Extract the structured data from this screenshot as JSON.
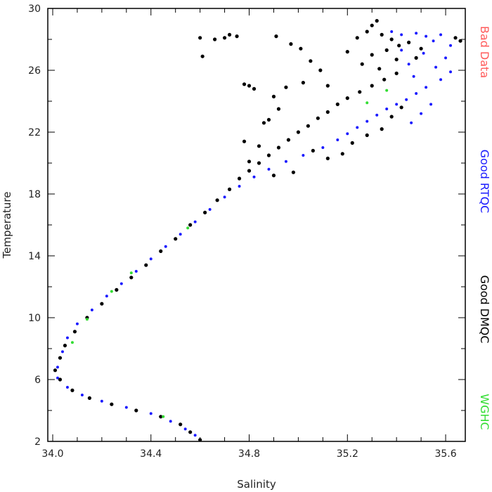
{
  "chart_data": {
    "type": "scatter",
    "xlabel": "Salinity",
    "ylabel": "Temperature",
    "xlim": [
      33.98,
      35.68
    ],
    "ylim": [
      2,
      30
    ],
    "x_ticks": [
      34.0,
      34.4,
      34.8,
      35.2,
      35.6
    ],
    "x_tick_labels": [
      "34.0",
      "34.4",
      "34.8",
      "35.2",
      "35.6"
    ],
    "y_ticks": [
      2,
      6,
      10,
      14,
      18,
      22,
      26,
      30
    ],
    "y_tick_labels": [
      "2",
      "6",
      "10",
      "14",
      "18",
      "22",
      "26",
      "30"
    ],
    "grid": false,
    "legend": {
      "placement": "right-vertical"
    },
    "series": [
      {
        "name": "Bad Data",
        "color": "#ff5a5a",
        "points": []
      },
      {
        "name": "Good RTQC",
        "color": "#1a1aff",
        "points": [
          [
            35.38,
            28.5
          ],
          [
            35.42,
            28.3
          ],
          [
            35.48,
            28.4
          ],
          [
            35.52,
            28.2
          ],
          [
            35.55,
            27.9
          ],
          [
            35.58,
            28.3
          ],
          [
            35.62,
            27.6
          ],
          [
            35.6,
            26.8
          ],
          [
            35.56,
            26.2
          ],
          [
            35.62,
            25.9
          ],
          [
            35.58,
            25.4
          ],
          [
            35.52,
            24.9
          ],
          [
            35.48,
            24.5
          ],
          [
            35.44,
            24.1
          ],
          [
            35.4,
            23.8
          ],
          [
            35.36,
            23.5
          ],
          [
            35.32,
            23.1
          ],
          [
            35.28,
            22.7
          ],
          [
            35.24,
            22.3
          ],
          [
            35.2,
            21.9
          ],
          [
            35.16,
            21.5
          ],
          [
            35.1,
            21.0
          ],
          [
            35.02,
            20.5
          ],
          [
            34.95,
            20.1
          ],
          [
            34.88,
            19.6
          ],
          [
            34.82,
            19.1
          ],
          [
            34.76,
            18.5
          ],
          [
            34.7,
            17.8
          ],
          [
            34.64,
            17.0
          ],
          [
            34.58,
            16.2
          ],
          [
            34.52,
            15.4
          ],
          [
            34.46,
            14.6
          ],
          [
            34.4,
            13.8
          ],
          [
            34.34,
            13.0
          ],
          [
            34.28,
            12.2
          ],
          [
            34.22,
            11.4
          ],
          [
            34.16,
            10.5
          ],
          [
            34.1,
            9.6
          ],
          [
            34.06,
            8.7
          ],
          [
            34.04,
            7.8
          ],
          [
            34.02,
            6.8
          ],
          [
            34.02,
            6.1
          ],
          [
            34.06,
            5.5
          ],
          [
            34.12,
            5.0
          ],
          [
            34.2,
            4.6
          ],
          [
            34.3,
            4.2
          ],
          [
            34.4,
            3.8
          ],
          [
            34.48,
            3.3
          ],
          [
            34.54,
            2.8
          ],
          [
            34.58,
            2.4
          ],
          [
            35.5,
            23.2
          ],
          [
            35.54,
            23.8
          ],
          [
            35.46,
            22.6
          ],
          [
            35.45,
            26.4
          ],
          [
            35.51,
            27.1
          ],
          [
            35.47,
            25.6
          ],
          [
            35.42,
            27.3
          ]
        ]
      },
      {
        "name": "Good DMQC",
        "color": "#000000",
        "points": [
          [
            35.3,
            28.9
          ],
          [
            35.32,
            29.2
          ],
          [
            35.34,
            28.3
          ],
          [
            35.38,
            28.0
          ],
          [
            35.41,
            27.6
          ],
          [
            35.36,
            27.3
          ],
          [
            35.3,
            27.0
          ],
          [
            35.26,
            26.4
          ],
          [
            35.33,
            26.1
          ],
          [
            35.4,
            26.7
          ],
          [
            35.45,
            27.8
          ],
          [
            35.5,
            27.4
          ],
          [
            35.48,
            26.8
          ],
          [
            35.4,
            25.8
          ],
          [
            35.35,
            25.4
          ],
          [
            35.3,
            25.0
          ],
          [
            35.25,
            24.6
          ],
          [
            35.2,
            24.2
          ],
          [
            35.16,
            23.8
          ],
          [
            35.12,
            23.3
          ],
          [
            35.08,
            22.9
          ],
          [
            35.04,
            22.4
          ],
          [
            35.0,
            22.0
          ],
          [
            34.96,
            21.5
          ],
          [
            34.92,
            21.0
          ],
          [
            34.88,
            20.5
          ],
          [
            34.84,
            20.0
          ],
          [
            34.8,
            19.5
          ],
          [
            34.76,
            19.0
          ],
          [
            34.72,
            18.3
          ],
          [
            34.67,
            17.6
          ],
          [
            34.62,
            16.8
          ],
          [
            34.56,
            16.0
          ],
          [
            34.5,
            15.1
          ],
          [
            34.44,
            14.3
          ],
          [
            34.38,
            13.4
          ],
          [
            34.32,
            12.6
          ],
          [
            34.26,
            11.8
          ],
          [
            34.2,
            10.9
          ],
          [
            34.14,
            10.0
          ],
          [
            34.09,
            9.1
          ],
          [
            34.05,
            8.2
          ],
          [
            34.03,
            7.4
          ],
          [
            34.01,
            6.6
          ],
          [
            34.03,
            6.0
          ],
          [
            34.08,
            5.3
          ],
          [
            34.15,
            4.8
          ],
          [
            34.24,
            4.4
          ],
          [
            34.34,
            4.0
          ],
          [
            34.44,
            3.6
          ],
          [
            34.52,
            3.1
          ],
          [
            34.56,
            2.6
          ],
          [
            34.6,
            2.1
          ],
          [
            35.22,
            21.3
          ],
          [
            35.28,
            21.8
          ],
          [
            35.34,
            22.2
          ],
          [
            35.38,
            23.0
          ],
          [
            35.42,
            23.6
          ],
          [
            35.18,
            20.6
          ],
          [
            35.12,
            20.3
          ],
          [
            35.06,
            20.8
          ],
          [
            34.98,
            19.4
          ],
          [
            34.9,
            19.2
          ],
          [
            34.7,
            28.1
          ],
          [
            34.72,
            28.3
          ],
          [
            34.66,
            28.0
          ],
          [
            34.6,
            28.1
          ],
          [
            34.61,
            26.9
          ],
          [
            34.75,
            28.2
          ],
          [
            34.78,
            25.1
          ],
          [
            34.8,
            25.0
          ],
          [
            34.82,
            24.8
          ],
          [
            34.9,
            24.3
          ],
          [
            34.92,
            23.5
          ],
          [
            34.88,
            22.8
          ],
          [
            34.86,
            22.6
          ],
          [
            34.91,
            28.2
          ],
          [
            34.97,
            27.7
          ],
          [
            35.01,
            27.4
          ],
          [
            35.05,
            26.6
          ],
          [
            35.09,
            26.0
          ],
          [
            35.12,
            25.0
          ],
          [
            35.02,
            25.2
          ],
          [
            34.95,
            24.9
          ],
          [
            34.78,
            21.4
          ],
          [
            34.8,
            20.1
          ],
          [
            34.84,
            21.1
          ],
          [
            35.64,
            28.1
          ],
          [
            35.66,
            27.9
          ],
          [
            35.28,
            28.5
          ],
          [
            35.24,
            28.1
          ],
          [
            35.2,
            27.2
          ]
        ]
      },
      {
        "name": "WGHC",
        "color": "#33dd33",
        "points": [
          [
            34.08,
            8.4
          ],
          [
            34.14,
            9.9
          ],
          [
            34.24,
            11.7
          ],
          [
            34.32,
            12.9
          ],
          [
            35.28,
            23.9
          ],
          [
            35.36,
            24.7
          ],
          [
            34.55,
            15.8
          ],
          [
            34.45,
            3.6
          ]
        ]
      }
    ]
  }
}
